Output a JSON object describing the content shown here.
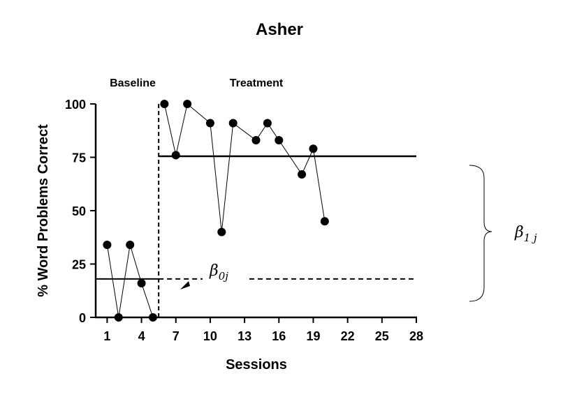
{
  "chart_data": {
    "type": "line",
    "title": "Asher",
    "xlabel": "Sessions",
    "ylabel": "% Word Problems Correct",
    "xlim": [
      0,
      28
    ],
    "ylim": [
      0,
      100
    ],
    "x_ticks": [
      1,
      4,
      7,
      10,
      13,
      16,
      19,
      22,
      25,
      28
    ],
    "y_ticks": [
      0,
      25,
      50,
      75,
      100
    ],
    "grid": false,
    "phases": [
      {
        "label": "Baseline",
        "x": [
          1,
          2,
          3,
          4,
          5
        ],
        "y": [
          34,
          0,
          34,
          16,
          0
        ]
      },
      {
        "label": "Treatment",
        "x": [
          6,
          7,
          8,
          10,
          11,
          12,
          14,
          15,
          16,
          18,
          19,
          20
        ],
        "y": [
          100,
          76,
          100,
          91,
          40,
          91,
          83,
          91,
          83,
          67,
          79,
          45
        ]
      }
    ],
    "phase_change_x": 5.5,
    "baseline_mean": 18,
    "treatment_mean": 75.5,
    "annotations": {
      "beta0": {
        "symbol": "β",
        "subscript": "0j"
      },
      "beta1": {
        "symbol": "β",
        "subscript": "1 j"
      }
    }
  }
}
